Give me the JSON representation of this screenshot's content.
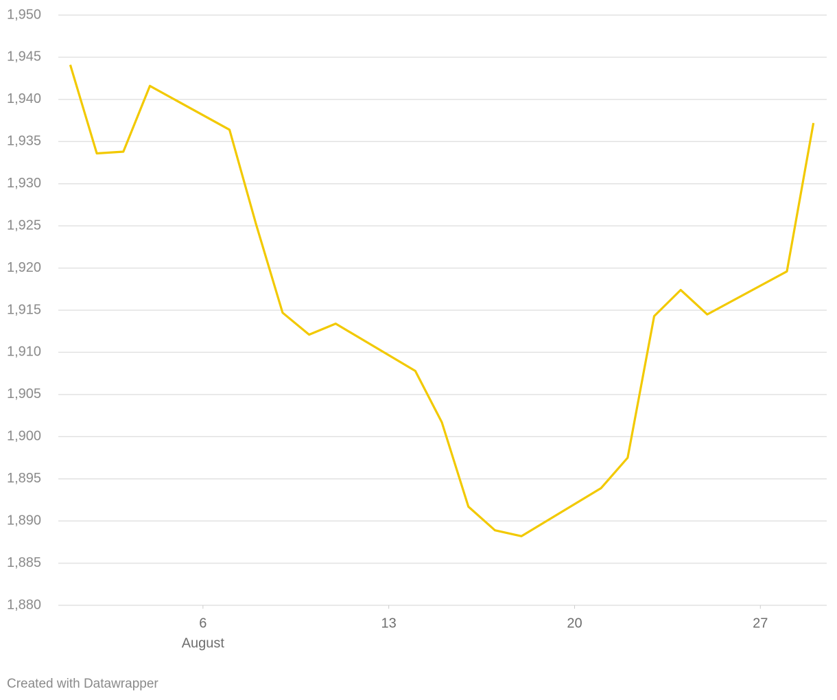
{
  "chart_data": {
    "type": "line",
    "x": [
      1,
      2,
      3,
      4,
      7,
      8,
      9,
      10,
      11,
      14,
      15,
      16,
      17,
      18,
      21,
      22,
      23,
      24,
      25,
      28,
      29
    ],
    "series": [
      {
        "color": "#f2c900",
        "values": [
          1944.1,
          1933.6,
          1933.8,
          1941.6,
          1936.4,
          1925.2,
          1914.7,
          1912.1,
          1913.4,
          1907.8,
          1901.7,
          1891.7,
          1888.9,
          1888.2,
          1893.9,
          1897.5,
          1914.3,
          1917.4,
          1914.5,
          1919.6,
          1937.2
        ]
      }
    ],
    "xlim": [
      0.55,
      29.5
    ],
    "xticks": [
      6,
      13,
      20,
      27
    ],
    "x_month_label": "August",
    "ylim": [
      1880,
      1950
    ],
    "yticks": [
      {
        "value": 1880,
        "label": "1,880"
      },
      {
        "value": 1885,
        "label": "1,885"
      },
      {
        "value": 1890,
        "label": "1,890"
      },
      {
        "value": 1895,
        "label": "1,895"
      },
      {
        "value": 1900,
        "label": "1,900"
      },
      {
        "value": 1905,
        "label": "1,905"
      },
      {
        "value": 1910,
        "label": "1,910"
      },
      {
        "value": 1915,
        "label": "1,915"
      },
      {
        "value": 1920,
        "label": "1,920"
      },
      {
        "value": 1925,
        "label": "1,925"
      },
      {
        "value": 1930,
        "label": "1,930"
      },
      {
        "value": 1935,
        "label": "1,935"
      },
      {
        "value": 1940,
        "label": "1,940"
      },
      {
        "value": 1945,
        "label": "1,945"
      },
      {
        "value": 1950,
        "label": "1,950"
      }
    ],
    "grid": true,
    "credit": "Created with Datawrapper"
  }
}
